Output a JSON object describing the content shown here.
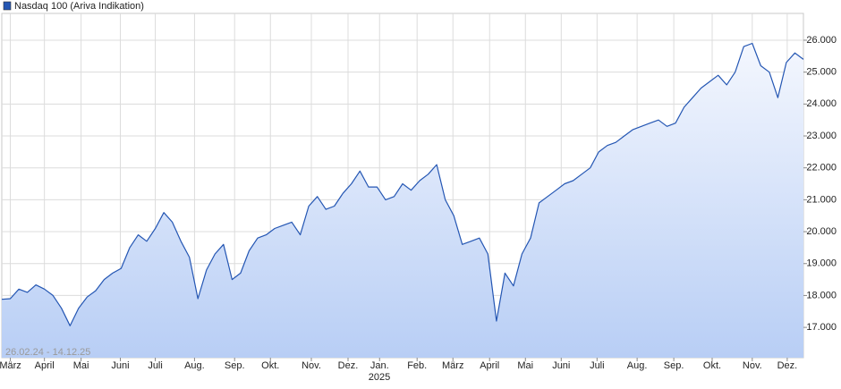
{
  "chart_data": {
    "type": "line",
    "subtitle": "26.02.24 - 14.12.25",
    "x_year_label": "2025",
    "series": [
      {
        "name": "Nasdaq 100 (Ariva Indikation)",
        "color": "#2456b3",
        "values": [
          17880,
          17900,
          18200,
          18100,
          18330,
          18200,
          18000,
          17600,
          17050,
          17600,
          17950,
          18150,
          18500,
          18700,
          18850,
          19500,
          19900,
          19700,
          20100,
          20600,
          20300,
          19700,
          19200,
          17900,
          18800,
          19300,
          19600,
          18500,
          18700,
          19400,
          19800,
          19900,
          20100,
          20200,
          20300,
          19900,
          20800,
          21100,
          20700,
          20800,
          21200,
          21500,
          21900,
          21400,
          21400,
          21000,
          21100,
          21500,
          21300,
          21600,
          21800,
          22100,
          21000,
          20500,
          19600,
          19700,
          19800,
          19300,
          17200,
          18700,
          18300,
          19300,
          19800,
          20900,
          21100,
          21300,
          21500,
          21600,
          21800,
          22000,
          22500,
          22700,
          22800,
          23000,
          23200,
          23300,
          23400,
          23500,
          23300,
          23400,
          23900,
          24200,
          24500,
          24700,
          24900,
          24600,
          25000,
          25800,
          25900,
          25200,
          25000,
          24200,
          25300,
          25600,
          25400
        ]
      }
    ],
    "xlim": [
      0,
      94
    ],
    "xticks": [
      {
        "value": 1.0,
        "label": "März"
      },
      {
        "value": 5.0,
        "label": "April"
      },
      {
        "value": 9.3,
        "label": "Mai"
      },
      {
        "value": 13.9,
        "label": "Juni"
      },
      {
        "value": 18.0,
        "label": "Juli"
      },
      {
        "value": 22.6,
        "label": "Aug."
      },
      {
        "value": 27.3,
        "label": "Sep."
      },
      {
        "value": 31.5,
        "label": "Okt."
      },
      {
        "value": 36.3,
        "label": "Nov."
      },
      {
        "value": 40.6,
        "label": "Dez."
      },
      {
        "value": 44.3,
        "label": "Jan."
      },
      {
        "value": 48.7,
        "label": "Feb."
      },
      {
        "value": 52.9,
        "label": "März"
      },
      {
        "value": 57.2,
        "label": "April"
      },
      {
        "value": 61.4,
        "label": "Mai"
      },
      {
        "value": 65.6,
        "label": "Juni"
      },
      {
        "value": 69.8,
        "label": "Juli"
      },
      {
        "value": 74.5,
        "label": "Aug."
      },
      {
        "value": 78.8,
        "label": "Sep."
      },
      {
        "value": 83.3,
        "label": "Okt."
      },
      {
        "value": 88.0,
        "label": "Nov."
      },
      {
        "value": 92.1,
        "label": "Dez."
      }
    ],
    "ylim": [
      16050,
      26840
    ],
    "yticks": [
      {
        "value": 17000,
        "label": "17.000"
      },
      {
        "value": 18000,
        "label": "18.000"
      },
      {
        "value": 19000,
        "label": "19.000"
      },
      {
        "value": 20000,
        "label": "20.000"
      },
      {
        "value": 21000,
        "label": "21.000"
      },
      {
        "value": 22000,
        "label": "22.000"
      },
      {
        "value": 23000,
        "label": "23.000"
      },
      {
        "value": 24000,
        "label": "24.000"
      },
      {
        "value": 25000,
        "label": "25.000"
      },
      {
        "value": 26000,
        "label": "26.000"
      }
    ],
    "grid": true
  }
}
